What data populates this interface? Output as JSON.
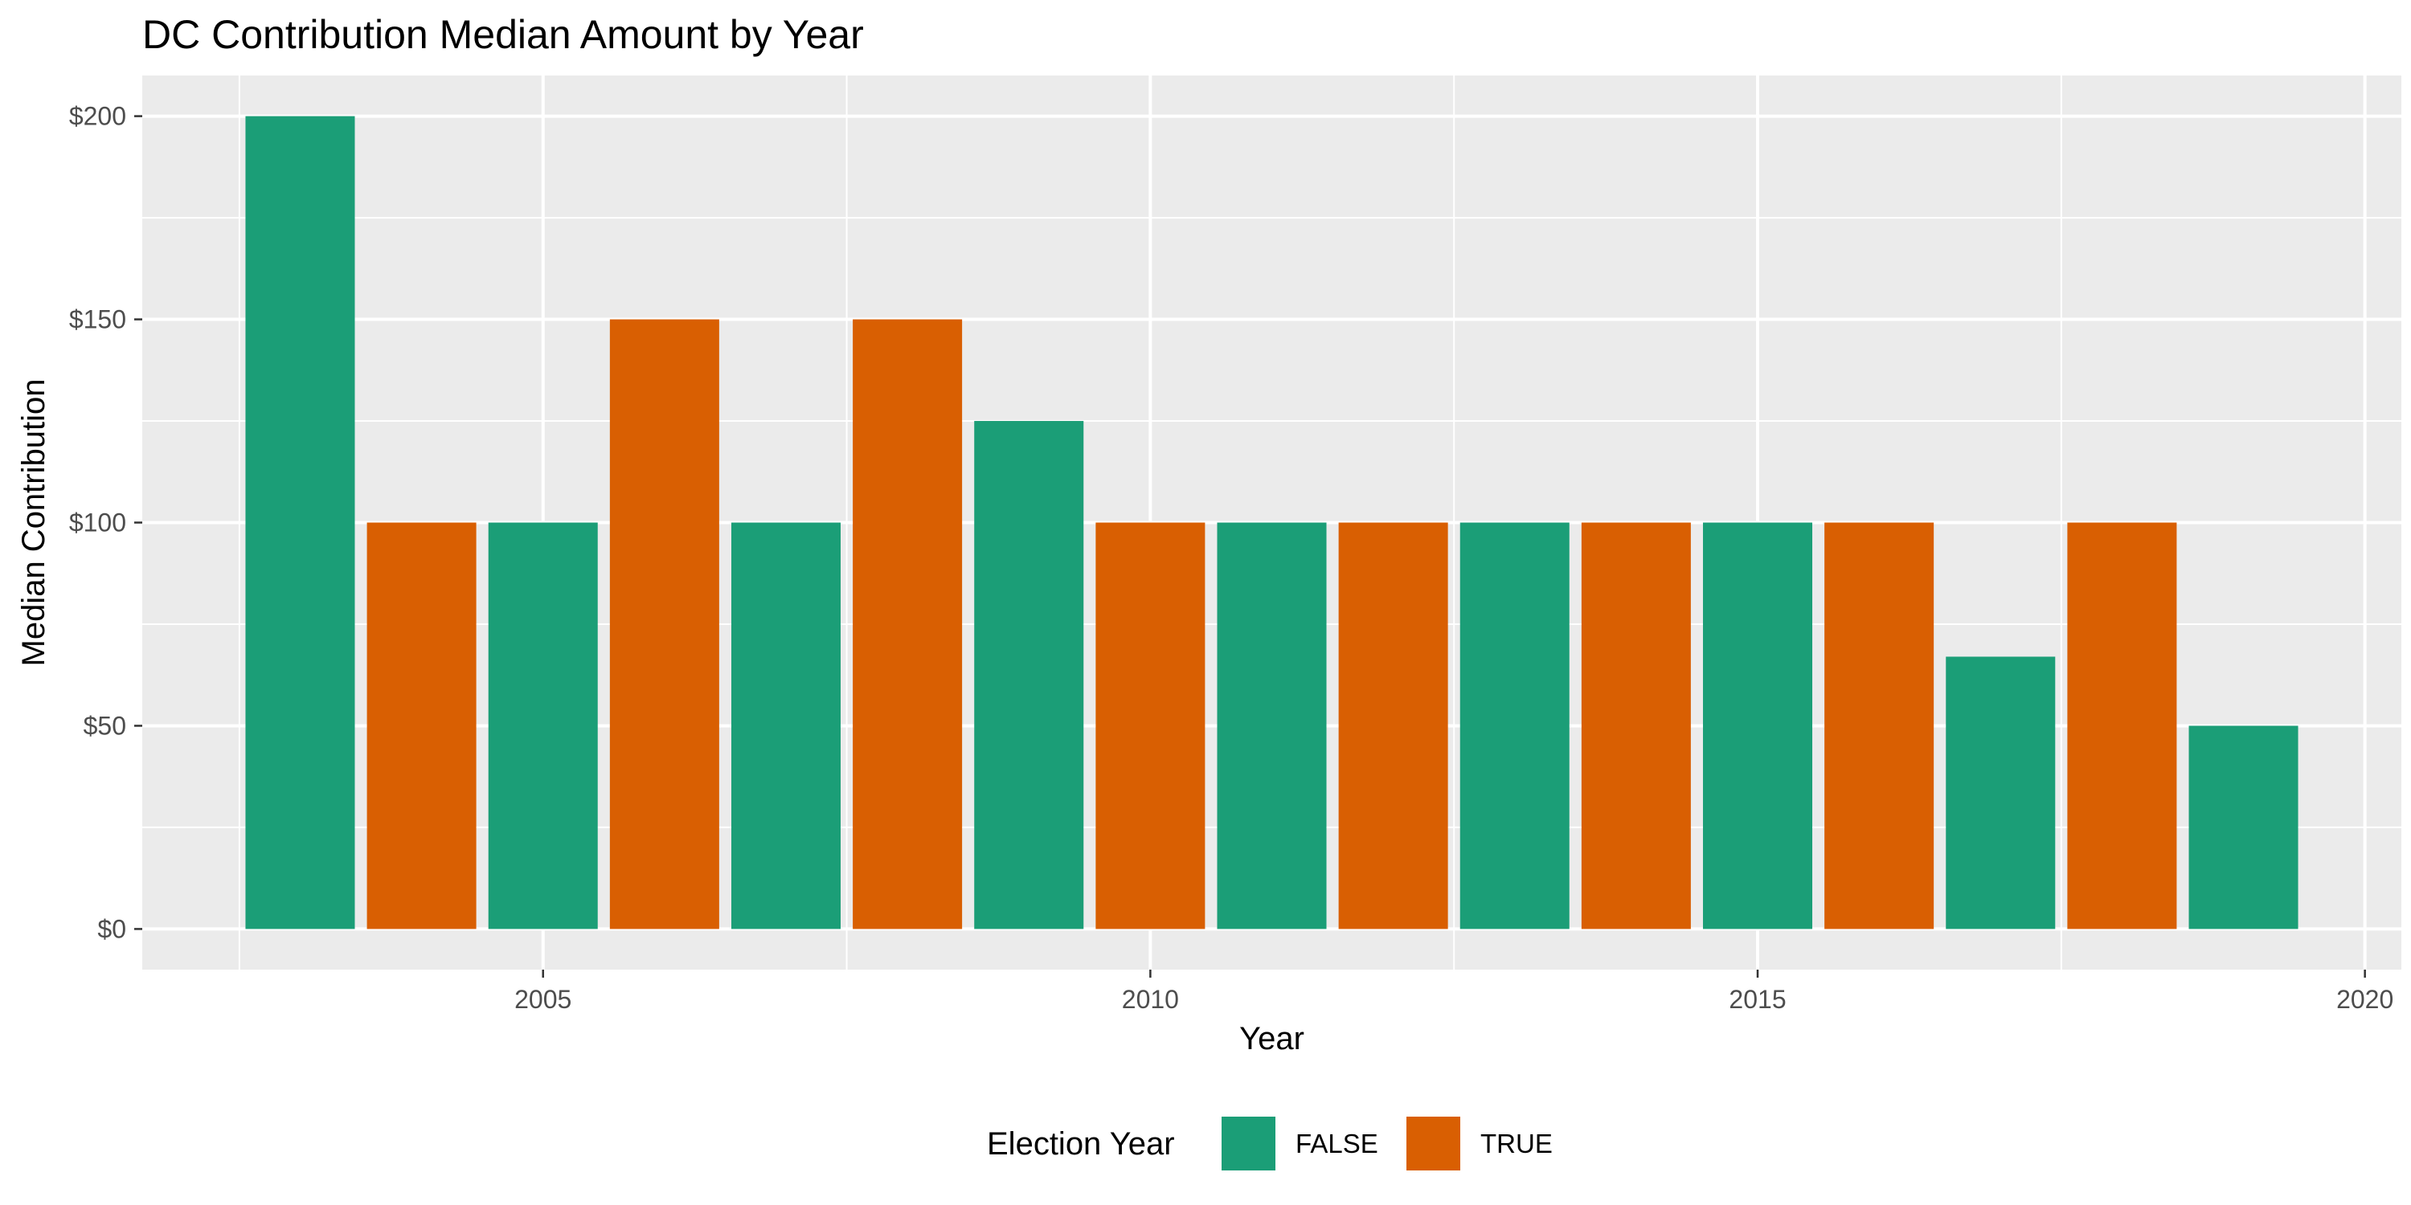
{
  "chart_data": {
    "type": "bar",
    "title": "DC Contribution Median Amount by Year",
    "xlabel": "Year",
    "ylabel": "Median Contribution",
    "x": [
      2003,
      2004,
      2005,
      2006,
      2007,
      2008,
      2009,
      2010,
      2011,
      2012,
      2013,
      2014,
      2015,
      2016,
      2017,
      2018,
      2019
    ],
    "values": [
      200,
      100,
      100,
      150,
      100,
      150,
      125,
      100,
      100,
      100,
      100,
      100,
      100,
      100,
      67,
      100,
      50
    ],
    "election_year": [
      false,
      true,
      false,
      true,
      false,
      true,
      false,
      true,
      false,
      true,
      false,
      true,
      false,
      true,
      false,
      true,
      false
    ],
    "xlim": [
      2001.7,
      2020.3
    ],
    "ylim": [
      -10,
      210
    ],
    "x_ticks": [
      2005,
      2010,
      2015,
      2020
    ],
    "x_tick_labels": [
      "2005",
      "2010",
      "2015",
      "2020"
    ],
    "y_ticks": [
      0,
      50,
      100,
      150,
      200
    ],
    "y_tick_labels": [
      "$0",
      "$50",
      "$100",
      "$150",
      "$200"
    ],
    "grid": true,
    "legend": {
      "title": "Election Year",
      "placement": "bottom",
      "entries": [
        {
          "label": "FALSE",
          "color": "#1B9E77"
        },
        {
          "label": "TRUE",
          "color": "#D95F02"
        }
      ]
    },
    "colors": {
      "false": "#1B9E77",
      "true": "#D95F02",
      "panel": "#EBEBEB",
      "grid": "#FFFFFF"
    }
  }
}
